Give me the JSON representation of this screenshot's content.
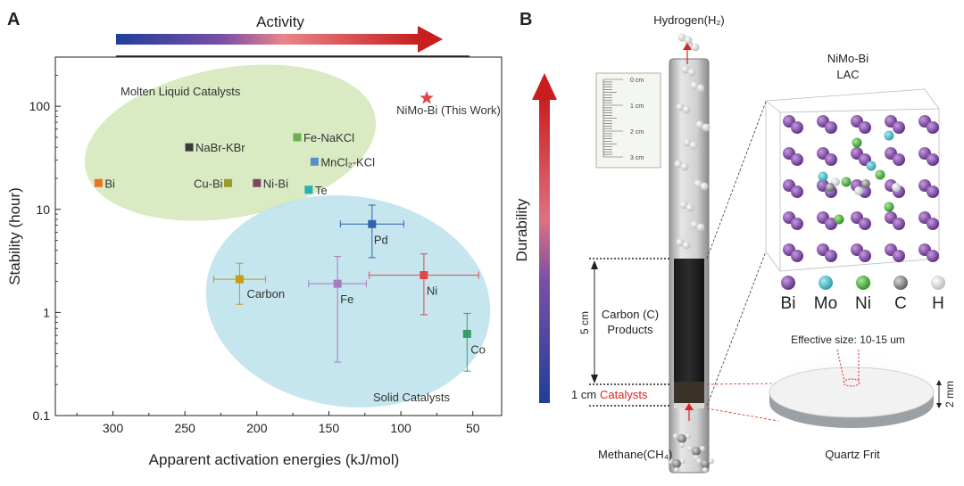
{
  "panel_a": {
    "letter": "A",
    "activity_label": "Activity",
    "group_liquid": "Molten Liquid Catalysts",
    "group_solid": "Solid Catalysts",
    "xlabel": "Apparent activation energies (kJ/mol)",
    "ylabel": "Stability (hour)"
  },
  "panel_b": {
    "letter": "B",
    "durability_label": "Durability",
    "hydrogen_label": "Hydrogen(H₂)",
    "methane_label": "Methane(CH₄)",
    "scale_ticks": [
      "0 cm",
      "1 cm",
      "2 cm",
      "3 cm"
    ],
    "dim_5cm": "5 cm",
    "dim_1cm": "1 cm",
    "carbon_products": [
      "Carbon (C)",
      "Products"
    ],
    "catalysts_label": "Catalysts",
    "lac_title": [
      "NiMo-Bi",
      "LAC"
    ],
    "legend": [
      {
        "symbol": "Bi",
        "color": "#7a3aa0"
      },
      {
        "symbol": "Mo",
        "color": "#3fb8c4"
      },
      {
        "symbol": "Ni",
        "color": "#4caf3e"
      },
      {
        "symbol": "C",
        "color": "#8c8c8c"
      },
      {
        "symbol": "H",
        "color": "#f0f0f0"
      }
    ],
    "effective_size": "Effective size: 10-15 um",
    "frit_label": "Quartz Frit",
    "frit_thickness": "2 mm"
  },
  "chart_data": {
    "type": "scatter",
    "xlabel": "Apparent activation energies (kJ/mol)",
    "ylabel": "Stability (hour)",
    "x_reversed": true,
    "xlim": [
      340,
      30
    ],
    "ylim": [
      0.1,
      300
    ],
    "y_scale": "log",
    "x_ticks": [
      300,
      250,
      200,
      150,
      100,
      50
    ],
    "y_ticks": [
      0.1,
      1,
      10,
      100
    ],
    "y_tick_labels": [
      "0.1",
      "1",
      "10",
      "100"
    ],
    "points": [
      {
        "label": "NiMo-Bi (This Work)",
        "x": 82,
        "y": 120,
        "color": "#e0474c",
        "marker": "star"
      },
      {
        "label": "NaBr-KBr",
        "x": 247,
        "y": 40,
        "color": "#3a3a3a",
        "marker": "square"
      },
      {
        "label": "Fe-NaKCl",
        "x": 172,
        "y": 50,
        "color": "#6ab04c",
        "marker": "square"
      },
      {
        "label": "MnCl₂-KCl",
        "x": 160,
        "y": 29,
        "color": "#5b8fc9",
        "marker": "square"
      },
      {
        "label": "Bi",
        "x": 310,
        "y": 18,
        "color": "#e8742a",
        "marker": "square"
      },
      {
        "label": "Cu-Bi",
        "x": 220,
        "y": 18,
        "color": "#9a9a2a",
        "marker": "square"
      },
      {
        "label": "Ni-Bi",
        "x": 200,
        "y": 18,
        "color": "#7a4a5a",
        "marker": "square"
      },
      {
        "label": "Te",
        "x": 164,
        "y": 15.5,
        "color": "#2ab0b0",
        "marker": "square"
      },
      {
        "label": "Pd",
        "x": 120,
        "y": 7.2,
        "color": "#2e62b0",
        "marker": "square",
        "xerr": 22,
        "yerr_low": 3.4,
        "yerr_high": 11
      },
      {
        "label": "Carbon",
        "x": 212,
        "y": 2.1,
        "color": "#c79a1a",
        "marker": "square",
        "xerr": 18,
        "yerr_low": 1.2,
        "yerr_high": 3.0
      },
      {
        "label": "Fe",
        "x": 144,
        "y": 1.9,
        "color": "#a87ac0",
        "marker": "square",
        "xerr": 20,
        "yerr_low": 0.33,
        "yerr_high": 3.5
      },
      {
        "label": "Ni",
        "x": 84,
        "y": 2.3,
        "color": "#e0474c",
        "marker": "square",
        "xerr": 38,
        "yerr_low": 0.95,
        "yerr_high": 3.7
      },
      {
        "label": "Co",
        "x": 54,
        "y": 0.62,
        "color": "#3a9a6a",
        "marker": "square",
        "yerr_low": 0.27,
        "yerr_high": 0.98
      }
    ]
  }
}
